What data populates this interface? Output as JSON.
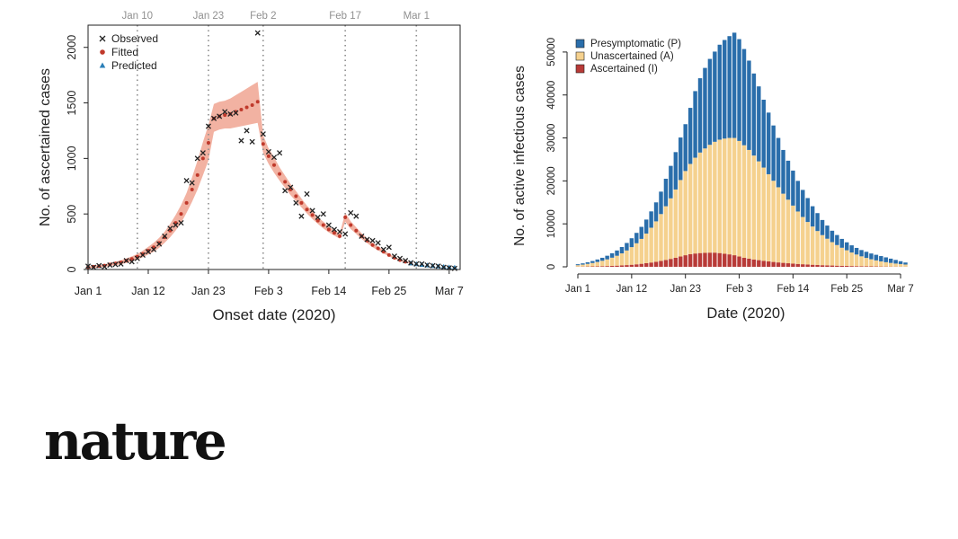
{
  "chart_data": [
    {
      "type": "scatter",
      "title": "",
      "xlabel": "Onset date (2020)",
      "ylabel": "No. of ascertained cases",
      "xlim": [
        0,
        68
      ],
      "ylim": [
        0,
        2200
      ],
      "x_ticks": [
        {
          "day": 0,
          "label": "Jan 1"
        },
        {
          "day": 11,
          "label": "Jan 12"
        },
        {
          "day": 22,
          "label": "Jan 23"
        },
        {
          "day": 33,
          "label": "Feb 3"
        },
        {
          "day": 44,
          "label": "Feb 14"
        },
        {
          "day": 55,
          "label": "Feb 25"
        },
        {
          "day": 66,
          "label": "Mar 7"
        }
      ],
      "y_ticks": [
        0,
        500,
        1000,
        1500,
        2000
      ],
      "period_lines": [
        {
          "day": 9,
          "label": "Jan 10"
        },
        {
          "day": 22,
          "label": "Jan 23"
        },
        {
          "day": 32,
          "label": "Feb 2"
        },
        {
          "day": 47,
          "label": "Feb 17"
        },
        {
          "day": 60,
          "label": "Mar 1"
        }
      ],
      "legend": {
        "position": "top-left",
        "entries": [
          "Observed",
          "Fitted",
          "Predicted"
        ]
      },
      "colors": {
        "observed": "#222222",
        "fitted": "#c0392b",
        "band": "#f0a492",
        "predicted": "#2b7fb8",
        "refline": "#8c8c8c"
      },
      "observed": {
        "x": [
          0,
          1,
          2,
          3,
          4,
          5,
          6,
          7,
          8,
          9,
          10,
          11,
          12,
          13,
          14,
          15,
          16,
          17,
          18,
          19,
          20,
          21,
          22,
          23,
          24,
          25,
          26,
          27,
          28,
          29,
          30,
          31,
          32,
          33,
          34,
          35,
          36,
          37,
          38,
          39,
          40,
          41,
          42,
          43,
          44,
          45,
          46,
          47,
          48,
          49,
          50,
          51,
          52,
          53,
          54,
          55,
          56,
          57,
          58,
          59,
          60,
          61,
          62,
          63,
          64,
          65,
          66,
          67
        ],
        "y": [
          30,
          20,
          35,
          25,
          40,
          45,
          50,
          80,
          70,
          100,
          130,
          160,
          180,
          230,
          300,
          370,
          400,
          420,
          800,
          780,
          1000,
          1050,
          1290,
          1360,
          1380,
          1420,
          1400,
          1410,
          1160,
          1250,
          1150,
          2130,
          1220,
          1060,
          1010,
          1050,
          710,
          740,
          600,
          480,
          680,
          530,
          470,
          500,
          400,
          360,
          340,
          320,
          510,
          480,
          300,
          270,
          260,
          240,
          180,
          200,
          120,
          100,
          80,
          60,
          50,
          50,
          40,
          35,
          30,
          20,
          15,
          10
        ]
      },
      "fitted": {
        "x": [
          0,
          1,
          2,
          3,
          4,
          5,
          6,
          7,
          8,
          9,
          10,
          11,
          12,
          13,
          14,
          15,
          16,
          17,
          18,
          19,
          20,
          21,
          22,
          23,
          24,
          25,
          26,
          27,
          28,
          29,
          30,
          31,
          32,
          33,
          34,
          35,
          36,
          37,
          38,
          39,
          40,
          41,
          42,
          43,
          44,
          45,
          46,
          47,
          48,
          49,
          50,
          51,
          52,
          53,
          54,
          55,
          56,
          57,
          58,
          59
        ],
        "y": [
          20,
          25,
          30,
          35,
          45,
          55,
          65,
          80,
          95,
          115,
          140,
          170,
          200,
          240,
          290,
          350,
          420,
          500,
          600,
          720,
          850,
          1000,
          1140,
          1360,
          1380,
          1390,
          1400,
          1420,
          1440,
          1460,
          1480,
          1510,
          1130,
          1020,
          940,
          860,
          790,
          720,
          660,
          600,
          540,
          490,
          440,
          400,
          360,
          330,
          300,
          470,
          400,
          350,
          300,
          260,
          220,
          190,
          160,
          130,
          105,
          85,
          70,
          55
        ],
        "band_lower": [
          12,
          16,
          20,
          24,
          32,
          40,
          48,
          60,
          72,
          90,
          110,
          135,
          160,
          195,
          240,
          290,
          350,
          420,
          510,
          610,
          720,
          850,
          980,
          1240,
          1260,
          1270,
          1270,
          1280,
          1290,
          1300,
          1310,
          1320,
          1050,
          950,
          870,
          800,
          735,
          670,
          615,
          560,
          505,
          455,
          410,
          370,
          333,
          305,
          277,
          430,
          365,
          320,
          275,
          238,
          200,
          173,
          145,
          118,
          95,
          77,
          63,
          49
        ],
        "band_upper": [
          28,
          34,
          40,
          46,
          58,
          70,
          82,
          100,
          118,
          140,
          170,
          205,
          240,
          285,
          340,
          410,
          490,
          580,
          690,
          830,
          980,
          1150,
          1300,
          1490,
          1510,
          1520,
          1540,
          1570,
          1600,
          1630,
          1660,
          1690,
          1210,
          1090,
          1010,
          920,
          845,
          770,
          705,
          640,
          575,
          525,
          470,
          430,
          387,
          355,
          323,
          510,
          435,
          380,
          325,
          282,
          240,
          207,
          175,
          142,
          115,
          93,
          77,
          61
        ]
      },
      "predicted": {
        "x": [
          59,
          60,
          61,
          62,
          63,
          64,
          65,
          66,
          67
        ],
        "y": [
          55,
          48,
          42,
          37,
          32,
          28,
          24,
          20,
          17
        ]
      }
    },
    {
      "type": "bar",
      "stacked": true,
      "title": "",
      "xlabel": "Date (2020)",
      "ylabel": "No. of active infectious cases",
      "xlim": [
        0,
        68
      ],
      "ylim": [
        0,
        55000
      ],
      "x_ticks": [
        {
          "day": 0,
          "label": "Jan 1"
        },
        {
          "day": 11,
          "label": "Jan 12"
        },
        {
          "day": 22,
          "label": "Jan 23"
        },
        {
          "day": 33,
          "label": "Feb 3"
        },
        {
          "day": 44,
          "label": "Feb 14"
        },
        {
          "day": 55,
          "label": "Feb 25"
        },
        {
          "day": 66,
          "label": "Mar 7"
        }
      ],
      "y_ticks": [
        0,
        10000,
        20000,
        30000,
        40000,
        50000
      ],
      "legend": {
        "position": "top-left"
      },
      "x": [
        0,
        1,
        2,
        3,
        4,
        5,
        6,
        7,
        8,
        9,
        10,
        11,
        12,
        13,
        14,
        15,
        16,
        17,
        18,
        19,
        20,
        21,
        22,
        23,
        24,
        25,
        26,
        27,
        28,
        29,
        30,
        31,
        32,
        33,
        34,
        35,
        36,
        37,
        38,
        39,
        40,
        41,
        42,
        43,
        44,
        45,
        46,
        47,
        48,
        49,
        50,
        51,
        52,
        53,
        54,
        55,
        56,
        57,
        58,
        59,
        60,
        61,
        62,
        63,
        64,
        65,
        66,
        67
      ],
      "series": [
        {
          "name": "Ascertained (I)",
          "color": "#b83a37",
          "values": [
            50,
            60,
            80,
            100,
            120,
            150,
            180,
            220,
            270,
            330,
            400,
            480,
            580,
            700,
            840,
            1000,
            1180,
            1380,
            1600,
            1840,
            2100,
            2400,
            2700,
            2950,
            3100,
            3200,
            3250,
            3300,
            3300,
            3200,
            3050,
            2900,
            2700,
            2400,
            2100,
            1900,
            1700,
            1550,
            1400,
            1250,
            1130,
            1020,
            920,
            830,
            750,
            670,
            600,
            540,
            480,
            430,
            380,
            340,
            300,
            265,
            235,
            205,
            180,
            160,
            140,
            122,
            106,
            92,
            80,
            70,
            60,
            52,
            45,
            38
          ]
        },
        {
          "name": "Unascertained (A)",
          "color": "#f5d18e",
          "values": [
            320,
            450,
            600,
            780,
            1000,
            1250,
            1550,
            1900,
            2300,
            2800,
            3400,
            4100,
            4900,
            5800,
            6900,
            8100,
            9400,
            10900,
            12500,
            14100,
            15900,
            17800,
            19600,
            21000,
            22300,
            23400,
            24300,
            25100,
            25800,
            26400,
            26800,
            27100,
            27300,
            26900,
            26200,
            25300,
            24200,
            23000,
            21700,
            20300,
            18900,
            17500,
            16100,
            14800,
            13500,
            12200,
            11000,
            9900,
            8900,
            7900,
            7000,
            6200,
            5450,
            4800,
            4200,
            3650,
            3150,
            2700,
            2300,
            1950,
            1650,
            1400,
            1180,
            1000,
            840,
            700,
            590,
            490
          ]
        },
        {
          "name": "Presymptomatic (P)",
          "color": "#2a6eab",
          "values": [
            230,
            290,
            370,
            470,
            580,
            700,
            850,
            1030,
            1230,
            1470,
            1750,
            2070,
            2420,
            2800,
            3260,
            3800,
            4420,
            5220,
            6400,
            7560,
            8700,
            9900,
            10900,
            13050,
            15500,
            17300,
            18750,
            20000,
            21000,
            22100,
            22950,
            23700,
            24500,
            23700,
            22400,
            20800,
            19100,
            17450,
            15800,
            14350,
            12870,
            11480,
            10180,
            9070,
            8150,
            7130,
            6300,
            5560,
            4720,
            4170,
            3520,
            3060,
            2650,
            2335,
            2065,
            1845,
            1670,
            1540,
            1460,
            1428,
            1344,
            1308,
            1240,
            1130,
            1000,
            848,
            665,
            472
          ]
        }
      ]
    }
  ],
  "brand": {
    "logo_text": "nature"
  }
}
